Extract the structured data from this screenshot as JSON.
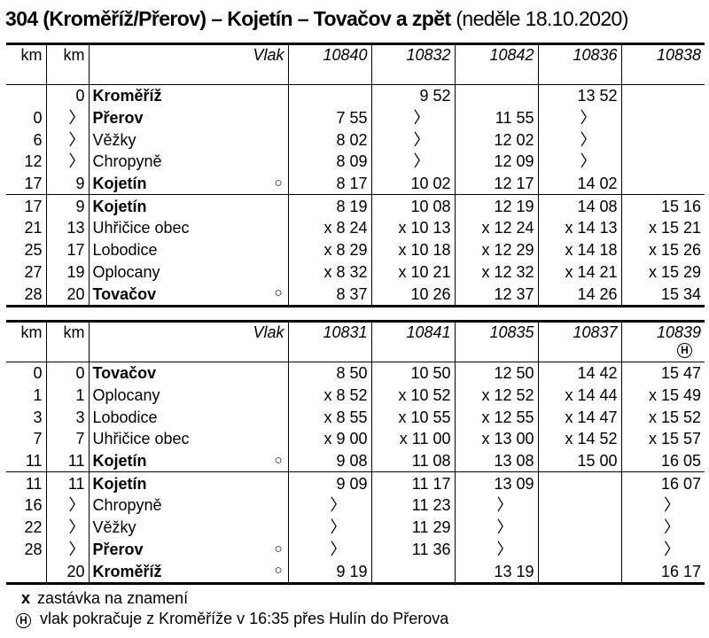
{
  "title": {
    "main": "304 (Kroměříž/Přerov) – Kojetín – Tovačov a zpět",
    "sub": "(neděle 18.10.2020)"
  },
  "tables": [
    {
      "header": {
        "km1": "km",
        "km2": "km",
        "vlak": "Vlak",
        "trains": [
          "10840",
          "10832",
          "10842",
          "10836",
          "10838"
        ],
        "marks": [
          "",
          "",
          "",
          "",
          ""
        ]
      },
      "rows": [
        {
          "km1": "",
          "km2": "0",
          "station": "Kroměříž",
          "bold": true,
          "circle": "",
          "times": [
            "",
            "9 52",
            "",
            "13 52",
            ""
          ]
        },
        {
          "km1": "0",
          "km2": "〉",
          "station": "Přerov",
          "bold": true,
          "circle": "",
          "times": [
            "7 55",
            "〉",
            "11 55",
            "〉",
            ""
          ]
        },
        {
          "km1": "6",
          "km2": "〉",
          "station": "Věžky",
          "bold": false,
          "circle": "",
          "times": [
            "8 02",
            "〉",
            "12 02",
            "〉",
            ""
          ]
        },
        {
          "km1": "12",
          "km2": "〉",
          "station": "Chropyně",
          "bold": false,
          "circle": "",
          "times": [
            "8 09",
            "〉",
            "12 09",
            "〉",
            ""
          ]
        },
        {
          "km1": "17",
          "km2": "9",
          "station": "Kojetín",
          "bold": true,
          "circle": "○",
          "times": [
            "8 17",
            "10 02",
            "12 17",
            "14 02",
            ""
          ]
        },
        {
          "km1": "17",
          "km2": "9",
          "station": "Kojetín",
          "bold": true,
          "circle": "",
          "times": [
            "8 19",
            "10 08",
            "12 19",
            "14 08",
            "15 16"
          ]
        },
        {
          "km1": "21",
          "km2": "13",
          "station": "Uhřičice obec",
          "bold": false,
          "circle": "",
          "times": [
            "x 8 24",
            "x 10 13",
            "x 12 24",
            "x 14 13",
            "x 15 21"
          ]
        },
        {
          "km1": "25",
          "km2": "17",
          "station": "Lobodice",
          "bold": false,
          "circle": "",
          "times": [
            "x 8 29",
            "x 10 18",
            "x 12 29",
            "x 14 18",
            "x 15 26"
          ]
        },
        {
          "km1": "27",
          "km2": "19",
          "station": "Oplocany",
          "bold": false,
          "circle": "",
          "times": [
            "x 8 32",
            "x 10 21",
            "x 12 32",
            "x 14 21",
            "x 15 29"
          ]
        },
        {
          "km1": "28",
          "km2": "20",
          "station": "Tovačov",
          "bold": true,
          "circle": "○",
          "times": [
            "8 37",
            "10 26",
            "12 37",
            "14 26",
            "15 34"
          ]
        }
      ]
    },
    {
      "header": {
        "km1": "km",
        "km2": "km",
        "vlak": "Vlak",
        "trains": [
          "10831",
          "10841",
          "10835",
          "10837",
          "10839"
        ],
        "marks": [
          "",
          "",
          "",
          "",
          "H"
        ]
      },
      "rows": [
        {
          "km1": "0",
          "km2": "0",
          "station": "Tovačov",
          "bold": true,
          "circle": "",
          "times": [
            "8 50",
            "10 50",
            "12 50",
            "14 42",
            "15 47"
          ]
        },
        {
          "km1": "1",
          "km2": "1",
          "station": "Oplocany",
          "bold": false,
          "circle": "",
          "times": [
            "x 8 52",
            "x 10 52",
            "x 12 52",
            "x 14 44",
            "x 15 49"
          ]
        },
        {
          "km1": "3",
          "km2": "3",
          "station": "Lobodice",
          "bold": false,
          "circle": "",
          "times": [
            "x 8 55",
            "x 10 55",
            "x 12 55",
            "x 14 47",
            "x 15 52"
          ]
        },
        {
          "km1": "7",
          "km2": "7",
          "station": "Uhřičice obec",
          "bold": false,
          "circle": "",
          "times": [
            "x 9 00",
            "x 11 00",
            "x 13 00",
            "x 14 52",
            "x 15 57"
          ]
        },
        {
          "km1": "11",
          "km2": "11",
          "station": "Kojetín",
          "bold": true,
          "circle": "○",
          "times": [
            "9 08",
            "11 08",
            "13 08",
            "15 00",
            "16 05"
          ]
        },
        {
          "km1": "11",
          "km2": "11",
          "station": "Kojetín",
          "bold": true,
          "circle": "",
          "times": [
            "9 09",
            "11 17",
            "13 09",
            "",
            "16 07"
          ]
        },
        {
          "km1": "16",
          "km2": "〉",
          "station": "Chropyně",
          "bold": false,
          "circle": "",
          "times": [
            "〉",
            "11 23",
            "〉",
            "",
            "〉"
          ]
        },
        {
          "km1": "22",
          "km2": "〉",
          "station": "Věžky",
          "bold": false,
          "circle": "",
          "times": [
            "〉",
            "11 29",
            "〉",
            "",
            "〉"
          ]
        },
        {
          "km1": "28",
          "km2": "〉",
          "station": "Přerov",
          "bold": true,
          "circle": "○",
          "times": [
            "〉",
            "11 36",
            "〉",
            "",
            "〉"
          ]
        },
        {
          "km1": "",
          "km2": "20",
          "station": "Kroměříž",
          "bold": true,
          "circle": "○",
          "times": [
            "9 19",
            "",
            "13 19",
            "",
            "16 17"
          ]
        }
      ]
    }
  ],
  "notes": [
    {
      "symbol": "x",
      "text": "zastávka na znamení"
    },
    {
      "symbol": "H",
      "text": "vlak pokračuje z Kroměříže v 16:35 přes Hulín do Přerova"
    }
  ]
}
